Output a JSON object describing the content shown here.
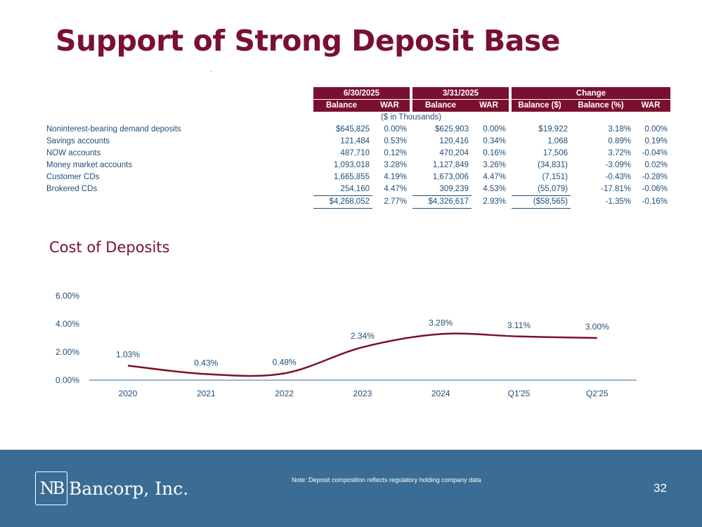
{
  "title": "Support of Strong Deposit Base",
  "table": {
    "period1": "6/30/2025",
    "period2": "3/31/2025",
    "change": "Change",
    "col_balance": "Balance",
    "col_war": "WAR",
    "col_change_balance_dollar": "Balance ($)",
    "col_change_balance_pct": "Balance (%)",
    "col_change_war": "WAR",
    "units_note": "($ in Thousands)",
    "rows": [
      {
        "label": "Noninterest-bearing demand deposits",
        "b1": "$645,825",
        "w1": "0.00%",
        "b2": "$625,903",
        "w2": "0.00%",
        "cd": "$19,922",
        "cp": "3.18%",
        "cw": "0.00%"
      },
      {
        "label": "Savings accounts",
        "b1": "121,484",
        "w1": "0.53%",
        "b2": "120,416",
        "w2": "0.34%",
        "cd": "1,068",
        "cp": "0.89%",
        "cw": "0.19%"
      },
      {
        "label": "NOW accounts",
        "b1": "487,710",
        "w1": "0.12%",
        "b2": "470,204",
        "w2": "0.16%",
        "cd": "17,506",
        "cp": "3.72%",
        "cw": "-0.04%"
      },
      {
        "label": "Money market accounts",
        "b1": "1,093,018",
        "w1": "3.28%",
        "b2": "1,127,849",
        "w2": "3.26%",
        "cd": "(34,831)",
        "cp": "-3.09%",
        "cw": "0.02%"
      },
      {
        "label": "Customer CDs",
        "b1": "1,665,855",
        "w1": "4.19%",
        "b2": "1,673,006",
        "w2": "4.47%",
        "cd": "(7,151)",
        "cp": "-0.43%",
        "cw": "-0.28%"
      },
      {
        "label": "Brokered CDs",
        "b1": "254,160",
        "w1": "4.47%",
        "b2": "309,239",
        "w2": "4.53%",
        "cd": "(55,079)",
        "cp": "-17.81%",
        "cw": "-0.06%"
      }
    ],
    "total": {
      "b1": "$4,268,052",
      "w1": "2.77%",
      "b2": "$4,326,617",
      "w2": "2.93%",
      "cd": "($58,565)",
      "cp": "-1.35%",
      "cw": "-0.16%"
    }
  },
  "chart_data": {
    "type": "line",
    "title": "Cost of Deposits",
    "categories": [
      "2020",
      "2021",
      "2022",
      "2023",
      "2024",
      "Q1'25",
      "Q2'25"
    ],
    "values": [
      1.03,
      0.43,
      0.48,
      2.34,
      3.28,
      3.11,
      3.0
    ],
    "value_labels": [
      "1.03%",
      "0.43%",
      "0.48%",
      "2.34%",
      "3.28%",
      "3.11%",
      "3.00%"
    ],
    "y_ticks": [
      "0.00%",
      "2.00%",
      "4.00%",
      "6.00%"
    ],
    "ylim": [
      0,
      6
    ],
    "xlabel": "",
    "ylabel": "",
    "line_color": "#7a1030"
  },
  "footer": {
    "logo_mark": "NB",
    "logo_text": "Bancorp, Inc.",
    "note": "Note: Deposit composition reflects regulatory holding company data",
    "page_number": "32"
  },
  "colors": {
    "brand": "#7a1030",
    "footer_bg": "#3b6d94",
    "table_text": "#1f4e79"
  }
}
